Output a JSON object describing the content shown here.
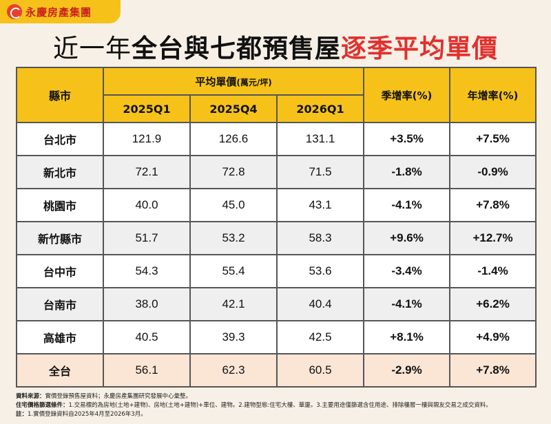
{
  "brand": {
    "name": "永慶房產集團"
  },
  "title": {
    "part1": "近一年",
    "part2": "全台與七都預售屋",
    "part3": "逐季平均單價"
  },
  "table": {
    "col_county": "縣市",
    "col_group": "平均單價",
    "col_group_unit": "(萬元/坪)",
    "col_q1": "2025Q1",
    "col_q2": "2025Q4",
    "col_q3": "2026Q1",
    "col_qoq": "季增率(%)",
    "col_yoy": "年增率(%)",
    "rows": [
      {
        "county": "台北市",
        "q1": "121.9",
        "q2": "126.6",
        "q3": "131.1",
        "qoq": "+3.5%",
        "yoy": "+7.5%"
      },
      {
        "county": "新北市",
        "q1": "72.1",
        "q2": "72.8",
        "q3": "71.5",
        "qoq": "-1.8%",
        "yoy": "-0.9%"
      },
      {
        "county": "桃園市",
        "q1": "40.0",
        "q2": "45.0",
        "q3": "43.1",
        "qoq": "-4.1%",
        "yoy": "+7.8%"
      },
      {
        "county": "新竹縣市",
        "q1": "51.7",
        "q2": "53.2",
        "q3": "58.3",
        "qoq": "+9.6%",
        "yoy": "+12.7%"
      },
      {
        "county": "台中市",
        "q1": "54.3",
        "q2": "55.4",
        "q3": "53.6",
        "qoq": "-3.4%",
        "yoy": "-1.4%"
      },
      {
        "county": "台南市",
        "q1": "38.0",
        "q2": "42.1",
        "q3": "40.4",
        "qoq": "-4.1%",
        "yoy": "+6.2%"
      },
      {
        "county": "高雄市",
        "q1": "40.5",
        "q2": "39.3",
        "q3": "42.5",
        "qoq": "+8.1%",
        "yoy": "+4.9%"
      },
      {
        "county": "全台",
        "q1": "56.1",
        "q2": "62.3",
        "q3": "60.5",
        "qoq": "-2.9%",
        "yoy": "+7.8%"
      }
    ]
  },
  "notes": {
    "source_label": "資料來源：",
    "source_text": "實價登錄預售屋資料；永慶房產集團研究發展中心彙整。",
    "filter_label": "住宅價格篩選條件：",
    "filter_text": "1.交易標的為房地(土地+建物)、房地(土地+建物)+車位、建物。2.建物型態:住宅大樓、華廈。3.主要用途僅篩選含住用途、排除樓層一樓與親友交易之成交資料。",
    "note_label": "註：",
    "note_text": "1.實價登錄資料自2025年4月至2026年3月。"
  }
}
